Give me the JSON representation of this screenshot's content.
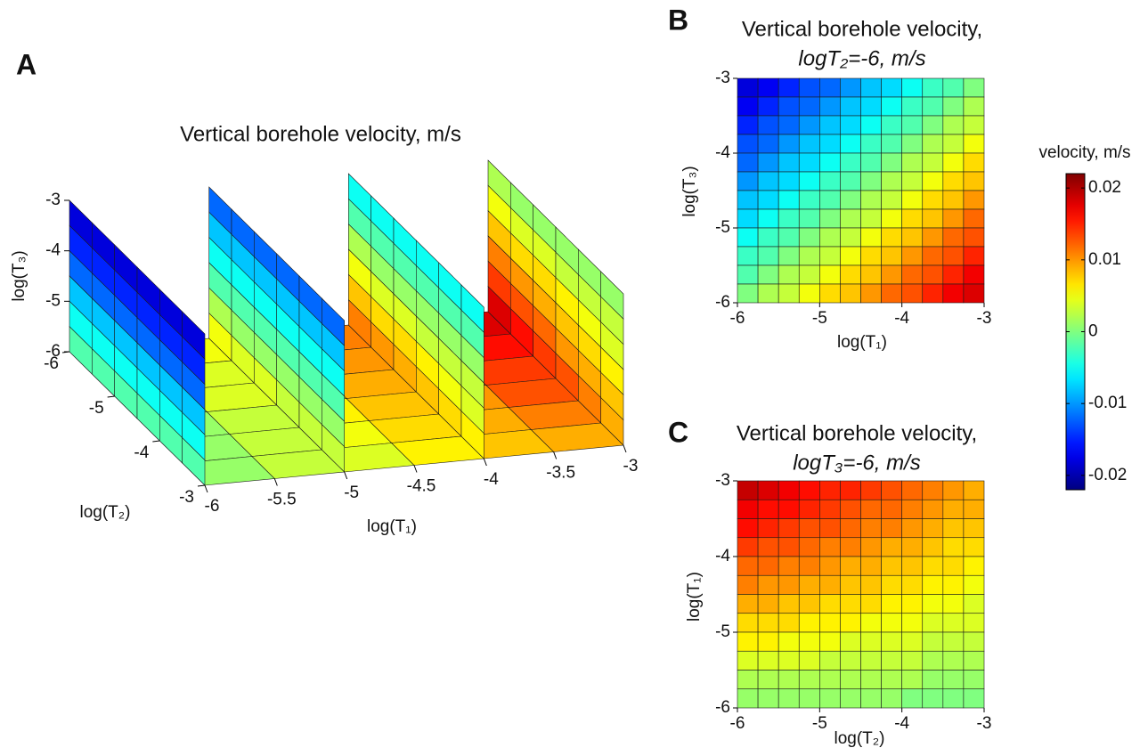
{
  "chart_data": [
    {
      "type": "slice3d",
      "panel_label": "A",
      "title": "Vertical borehole velocity, m/s",
      "xlabel": "log(T₁)",
      "ylabel": "log(T₂)",
      "zlabel": "log(T₃)",
      "xlim": [
        -6,
        -3
      ],
      "xticks": [
        -6,
        -5.5,
        -5,
        -4.5,
        -4,
        -3.5,
        -3
      ],
      "ylim": [
        -6,
        -3
      ],
      "yticks": [
        -6,
        -5,
        -4,
        -3
      ],
      "zlim": [
        -6,
        -3
      ],
      "zticks": [
        -6,
        -5,
        -4,
        -3
      ],
      "slices": [
        {
          "x": -6,
          "values": [
            [
              -0.018,
              -0.018,
              -0.018,
              -0.018,
              -0.018,
              -0.018
            ],
            [
              -0.015,
              -0.015,
              -0.015,
              -0.015,
              -0.015,
              -0.015
            ],
            [
              -0.012,
              -0.012,
              -0.012,
              -0.012,
              -0.012,
              -0.012
            ],
            [
              -0.008,
              -0.008,
              -0.008,
              -0.008,
              -0.008,
              -0.008
            ],
            [
              -0.005,
              -0.005,
              -0.005,
              -0.005,
              -0.005,
              -0.005
            ],
            [
              -0.002,
              -0.002,
              -0.002,
              -0.002,
              -0.002,
              -0.002
            ]
          ]
        },
        {
          "x": -5,
          "values": [
            [
              -0.012,
              -0.012,
              -0.012,
              -0.012,
              -0.012,
              -0.012
            ],
            [
              -0.008,
              -0.008,
              -0.008,
              -0.008,
              -0.008,
              -0.008
            ],
            [
              -0.005,
              -0.005,
              -0.005,
              -0.005,
              -0.005,
              -0.005
            ],
            [
              -0.002,
              -0.002,
              -0.002,
              -0.002,
              -0.002,
              -0.002
            ],
            [
              0.002,
              0.001,
              0.001,
              0.001,
              0.001,
              0.001
            ],
            [
              0.005,
              0.004,
              0.004,
              0.003,
              0.003,
              0.003
            ]
          ]
        },
        {
          "x": -4,
          "values": [
            [
              -0.005,
              -0.005,
              -0.005,
              -0.005,
              -0.005,
              -0.005
            ],
            [
              -0.002,
              -0.002,
              -0.002,
              -0.002,
              -0.002,
              -0.002
            ],
            [
              0.002,
              0.001,
              0.001,
              0.001,
              0.001,
              0.001
            ],
            [
              0.005,
              0.004,
              0.004,
              0.003,
              0.003,
              0.003
            ],
            [
              0.008,
              0.007,
              0.007,
              0.006,
              0.005,
              0.004
            ],
            [
              0.011,
              0.01,
              0.009,
              0.008,
              0.007,
              0.006
            ]
          ]
        },
        {
          "x": -3,
          "values": [
            [
              0.002,
              0.001,
              0.001,
              0.001,
              0.001,
              0.001
            ],
            [
              0.005,
              0.004,
              0.004,
              0.003,
              0.003,
              0.003
            ],
            [
              0.008,
              0.007,
              0.007,
              0.006,
              0.005,
              0.004
            ],
            [
              0.011,
              0.01,
              0.009,
              0.008,
              0.007,
              0.006
            ],
            [
              0.014,
              0.013,
              0.012,
              0.01,
              0.009,
              0.008
            ],
            [
              0.018,
              0.016,
              0.014,
              0.013,
              0.011,
              0.009
            ]
          ]
        }
      ],
      "floor": {
        "z": -6,
        "values": [
          [
            0.002,
            0.005,
            0.008,
            0.011,
            0.014,
            0.018
          ],
          [
            0.001,
            0.004,
            0.007,
            0.01,
            0.013,
            0.016
          ],
          [
            0.001,
            0.004,
            0.007,
            0.009,
            0.012,
            0.014
          ],
          [
            0.001,
            0.003,
            0.006,
            0.008,
            0.01,
            0.013
          ],
          [
            0.001,
            0.003,
            0.005,
            0.007,
            0.009,
            0.011
          ],
          [
            0.001,
            0.003,
            0.004,
            0.006,
            0.008,
            0.009
          ]
        ]
      }
    },
    {
      "type": "heatmap",
      "panel_label": "B",
      "title": [
        "Vertical borehole velocity,",
        "logT₂=-6, m/s"
      ],
      "xlabel": "log(T₁)",
      "ylabel": "log(T₃)",
      "xlim": [
        -6,
        -3
      ],
      "xticks": [
        -6,
        -5,
        -4,
        -3
      ],
      "ylim": [
        -6,
        -3
      ],
      "yticks": [
        -6,
        -5,
        -4,
        -3
      ],
      "values": [
        [
          -0.018,
          -0.017,
          -0.015,
          -0.013,
          -0.012,
          -0.01,
          -0.008,
          -0.007,
          -0.005,
          -0.003,
          -0.002,
          0
        ],
        [
          -0.017,
          -0.015,
          -0.013,
          -0.012,
          -0.01,
          -0.008,
          -0.007,
          -0.005,
          -0.003,
          -0.002,
          0,
          0.002
        ],
        [
          -0.015,
          -0.013,
          -0.012,
          -0.01,
          -0.008,
          -0.007,
          -0.005,
          -0.003,
          -0.002,
          0,
          0.002,
          0.003
        ],
        [
          -0.013,
          -0.012,
          -0.01,
          -0.008,
          -0.007,
          -0.005,
          -0.003,
          -0.002,
          0,
          0.002,
          0.003,
          0.005
        ],
        [
          -0.012,
          -0.01,
          -0.008,
          -0.007,
          -0.005,
          -0.003,
          -0.002,
          0,
          0.002,
          0.003,
          0.005,
          0.007
        ],
        [
          -0.01,
          -0.008,
          -0.007,
          -0.005,
          -0.003,
          -0.002,
          0,
          0.002,
          0.003,
          0.005,
          0.007,
          0.008
        ],
        [
          -0.008,
          -0.007,
          -0.005,
          -0.003,
          -0.002,
          0,
          0.002,
          0.003,
          0.005,
          0.007,
          0.008,
          0.01
        ],
        [
          -0.007,
          -0.005,
          -0.003,
          -0.002,
          0,
          0.002,
          0.003,
          0.005,
          0.007,
          0.008,
          0.01,
          0.012
        ],
        [
          -0.005,
          -0.003,
          -0.002,
          0,
          0.002,
          0.003,
          0.005,
          0.007,
          0.008,
          0.01,
          0.012,
          0.013
        ],
        [
          -0.003,
          -0.002,
          0,
          0.002,
          0.003,
          0.005,
          0.007,
          0.008,
          0.01,
          0.012,
          0.013,
          0.015
        ],
        [
          -0.002,
          0,
          0.002,
          0.003,
          0.005,
          0.007,
          0.008,
          0.01,
          0.012,
          0.013,
          0.015,
          0.017
        ],
        [
          0,
          0.002,
          0.003,
          0.005,
          0.007,
          0.008,
          0.01,
          0.012,
          0.013,
          0.015,
          0.017,
          0.018
        ]
      ]
    },
    {
      "type": "heatmap",
      "panel_label": "C",
      "title": [
        "Vertical borehole velocity,",
        "logT₃=-6, m/s"
      ],
      "xlabel": "log(T₂)",
      "ylabel": "log(T₁)",
      "xlim": [
        -6,
        -3
      ],
      "xticks": [
        -6,
        -5,
        -4,
        -3
      ],
      "ylim": [
        -6,
        -3
      ],
      "yticks": [
        -6,
        -5,
        -4,
        -3
      ],
      "values": [
        [
          0.019,
          0.018,
          0.017,
          0.016,
          0.015,
          0.015,
          0.014,
          0.013,
          0.012,
          0.011,
          0.01,
          0.009
        ],
        [
          0.017,
          0.016,
          0.016,
          0.015,
          0.014,
          0.013,
          0.012,
          0.012,
          0.011,
          0.01,
          0.009,
          0.009
        ],
        [
          0.016,
          0.015,
          0.014,
          0.013,
          0.013,
          0.012,
          0.011,
          0.011,
          0.01,
          0.009,
          0.008,
          0.008
        ],
        [
          0.014,
          0.013,
          0.013,
          0.012,
          0.011,
          0.011,
          0.01,
          0.009,
          0.009,
          0.008,
          0.007,
          0.007
        ],
        [
          0.012,
          0.012,
          0.011,
          0.011,
          0.01,
          0.009,
          0.009,
          0.008,
          0.008,
          0.007,
          0.007,
          0.006
        ],
        [
          0.011,
          0.01,
          0.01,
          0.009,
          0.009,
          0.008,
          0.008,
          0.007,
          0.007,
          0.006,
          0.006,
          0.005
        ],
        [
          0.009,
          0.009,
          0.008,
          0.008,
          0.007,
          0.007,
          0.007,
          0.006,
          0.006,
          0.005,
          0.005,
          0.004
        ],
        [
          0.007,
          0.007,
          0.007,
          0.006,
          0.006,
          0.006,
          0.005,
          0.005,
          0.005,
          0.004,
          0.004,
          0.004
        ],
        [
          0.006,
          0.006,
          0.005,
          0.005,
          0.005,
          0.004,
          0.004,
          0.004,
          0.004,
          0.003,
          0.003,
          0.003
        ],
        [
          0.004,
          0.004,
          0.004,
          0.004,
          0.003,
          0.003,
          0.003,
          0.003,
          0.003,
          0.002,
          0.002,
          0.002
        ],
        [
          0.002,
          0.002,
          0.002,
          0.002,
          0.002,
          0.002,
          0.002,
          0.002,
          0.002,
          0.001,
          0.001,
          0.001
        ],
        [
          0.001,
          0.001,
          0.001,
          0.001,
          0.001,
          0.001,
          0.001,
          0.001,
          0,
          0,
          0,
          0
        ]
      ]
    }
  ],
  "colorbar": {
    "label": "velocity, m/s",
    "colormap": "jet",
    "clim": [
      -0.022,
      0.022
    ],
    "ticks": [
      -0.02,
      -0.01,
      0,
      0.01,
      0.02
    ]
  }
}
